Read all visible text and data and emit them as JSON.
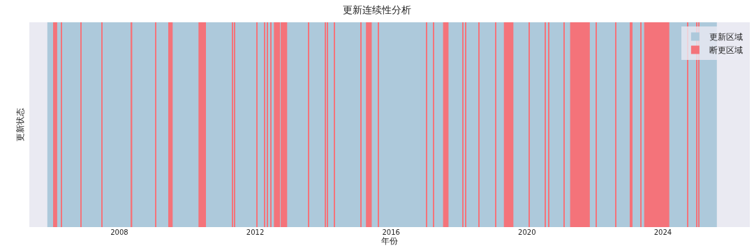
{
  "chart_data": {
    "type": "bar",
    "orientation": "horizontal",
    "title": "更新连续性分析",
    "xlabel": "年份",
    "ylabel": "更新状态",
    "categories": [
      null
    ],
    "xlim": [
      2005.35,
      2026.56
    ],
    "xticks": [
      2008,
      2012,
      2016,
      2020,
      2024
    ],
    "legend": "top right",
    "tick_labels": "x",
    "series": [
      {
        "name": "更新区域",
        "color": "#adc9db",
        "base": [
          2005.88
        ],
        "values": [
          19.71
        ]
      },
      {
        "name": "断更区域",
        "color": "#f4737a",
        "base": [
          2006.05
        ],
        "values": [
          0.12
        ]
      },
      {
        "color": "#f4737a",
        "base": [
          2006.29
        ],
        "values": [
          0.02
        ]
      },
      {
        "color": "#f4737a",
        "base": [
          2006.86
        ],
        "values": [
          0.02
        ]
      },
      {
        "color": "#f4737a",
        "base": [
          2007.48
        ],
        "values": [
          0.02
        ]
      },
      {
        "color": "#f4737a",
        "base": [
          2008.34
        ],
        "values": [
          0.04
        ]
      },
      {
        "color": "#f4737a",
        "base": [
          2009.06
        ],
        "values": [
          0.02
        ]
      },
      {
        "color": "#f4737a",
        "base": [
          2009.44
        ],
        "values": [
          0.13
        ]
      },
      {
        "color": "#f4737a",
        "base": [
          2010.33
        ],
        "values": [
          0.22
        ]
      },
      {
        "color": "#f4737a",
        "base": [
          2011.32
        ],
        "values": [
          0.02
        ]
      },
      {
        "color": "#f4737a",
        "base": [
          2011.39
        ],
        "values": [
          0.02
        ]
      },
      {
        "color": "#f4737a",
        "base": [
          2012.04
        ],
        "values": [
          0.02
        ]
      },
      {
        "color": "#f4737a",
        "base": [
          2012.27
        ],
        "values": [
          0.02
        ]
      },
      {
        "color": "#f4737a",
        "base": [
          2012.35
        ],
        "values": [
          0.02
        ]
      },
      {
        "color": "#f4737a",
        "base": [
          2012.46
        ],
        "values": [
          0.02
        ]
      },
      {
        "color": "#f4737a",
        "base": [
          2012.55
        ],
        "values": [
          0.18
        ]
      },
      {
        "color": "#f4737a",
        "base": [
          2012.75
        ],
        "values": [
          0.19
        ]
      },
      {
        "color": "#f4737a",
        "base": [
          2013.57
        ],
        "values": [
          0.02
        ]
      },
      {
        "color": "#f4737a",
        "base": [
          2014.06
        ],
        "values": [
          0.02
        ]
      },
      {
        "color": "#f4737a",
        "base": [
          2014.12
        ],
        "values": [
          0.02
        ]
      },
      {
        "color": "#f4737a",
        "base": [
          2014.33
        ],
        "values": [
          0.02
        ]
      },
      {
        "color": "#f4737a",
        "base": [
          2015.11
        ],
        "values": [
          0.02
        ]
      },
      {
        "color": "#f4737a",
        "base": [
          2015.26
        ],
        "values": [
          0.17
        ]
      },
      {
        "color": "#f4737a",
        "base": [
          2015.62
        ],
        "values": [
          0.02
        ]
      },
      {
        "color": "#f4737a",
        "base": [
          2017.04
        ],
        "values": [
          0.02
        ]
      },
      {
        "color": "#f4737a",
        "base": [
          2017.23
        ],
        "values": [
          0.02
        ]
      },
      {
        "color": "#f4737a",
        "base": [
          2017.53
        ],
        "values": [
          0.16
        ]
      },
      {
        "color": "#f4737a",
        "base": [
          2018.11
        ],
        "values": [
          0.02
        ]
      },
      {
        "color": "#f4737a",
        "base": [
          2018.18
        ],
        "values": [
          0.02
        ]
      },
      {
        "color": "#f4737a",
        "base": [
          2018.57
        ],
        "values": [
          0.02
        ]
      },
      {
        "color": "#f4737a",
        "base": [
          2019.06
        ],
        "values": [
          0.02
        ]
      },
      {
        "color": "#f4737a",
        "base": [
          2019.32
        ],
        "values": [
          0.28
        ]
      },
      {
        "color": "#f4737a",
        "base": [
          2020.05
        ],
        "values": [
          0.02
        ]
      },
      {
        "color": "#f4737a",
        "base": [
          2020.52
        ],
        "values": [
          0.02
        ]
      },
      {
        "color": "#f4737a",
        "base": [
          2020.64
        ],
        "values": [
          0.02
        ]
      },
      {
        "color": "#f4737a",
        "base": [
          2021.08
        ],
        "values": [
          0.02
        ]
      },
      {
        "color": "#f4737a",
        "base": [
          2021.27
        ],
        "values": [
          0.58
        ]
      },
      {
        "color": "#f4737a",
        "base": [
          2022.02
        ],
        "values": [
          0.02
        ]
      },
      {
        "color": "#f4737a",
        "base": [
          2022.6
        ],
        "values": [
          0.02
        ]
      },
      {
        "color": "#f4737a",
        "base": [
          2023.03
        ],
        "values": [
          0.02
        ]
      },
      {
        "color": "#f4737a",
        "base": [
          2023.07
        ],
        "values": [
          0.02
        ]
      },
      {
        "color": "#f4737a",
        "base": [
          2023.34
        ],
        "values": [
          0.02
        ]
      },
      {
        "color": "#f4737a",
        "base": [
          2023.45
        ],
        "values": [
          0.74
        ]
      },
      {
        "color": "#f4737a",
        "base": [
          2024.72
        ],
        "values": [
          0.02
        ]
      },
      {
        "color": "#f4737a",
        "base": [
          2024.99
        ],
        "values": [
          0.02
        ]
      },
      {
        "color": "#f4737a",
        "base": [
          2025.05
        ],
        "values": [
          0.02
        ]
      }
    ]
  }
}
